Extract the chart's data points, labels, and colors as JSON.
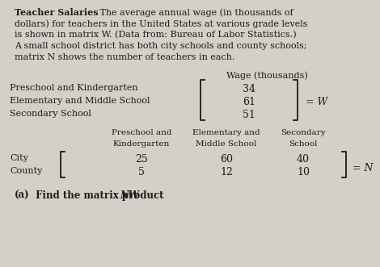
{
  "title_bold": "Teacher Salaries",
  "title_rest": " The average annual wage (in thousands of dollars) for teachers in the United States at various grade levels is shown in matrix W. (Data from: Bureau of Labor Statistics.) A small school district has both city schools and county schools; matrix N shows the number of teachers in each.",
  "wage_header": "Wage (thousands)",
  "W_labels": [
    "Preschool and Kindergarten",
    "Elementary and Middle School",
    "Secondary School"
  ],
  "W_values": [
    "34",
    "61",
    "51"
  ],
  "W_name": "= W",
  "N_col_headers_line1": [
    "Preschool and",
    "Elementary and",
    "Secondary"
  ],
  "N_col_headers_line2": [
    "Kindergarten",
    "Middle School",
    "School"
  ],
  "N_row_labels": [
    "City",
    "County"
  ],
  "N_values": [
    [
      "25",
      "60",
      "40"
    ],
    [
      "5",
      "12",
      "10"
    ]
  ],
  "N_name": "= N",
  "part_a_roman": "(a)",
  "part_a_text": " Find the matrix product ",
  "part_a_italic": "NW",
  "part_a_end": ".",
  "bg_color": "#d4d0c8",
  "text_color": "#1a1a1a",
  "fs": 8.0,
  "fsm": 9.0
}
